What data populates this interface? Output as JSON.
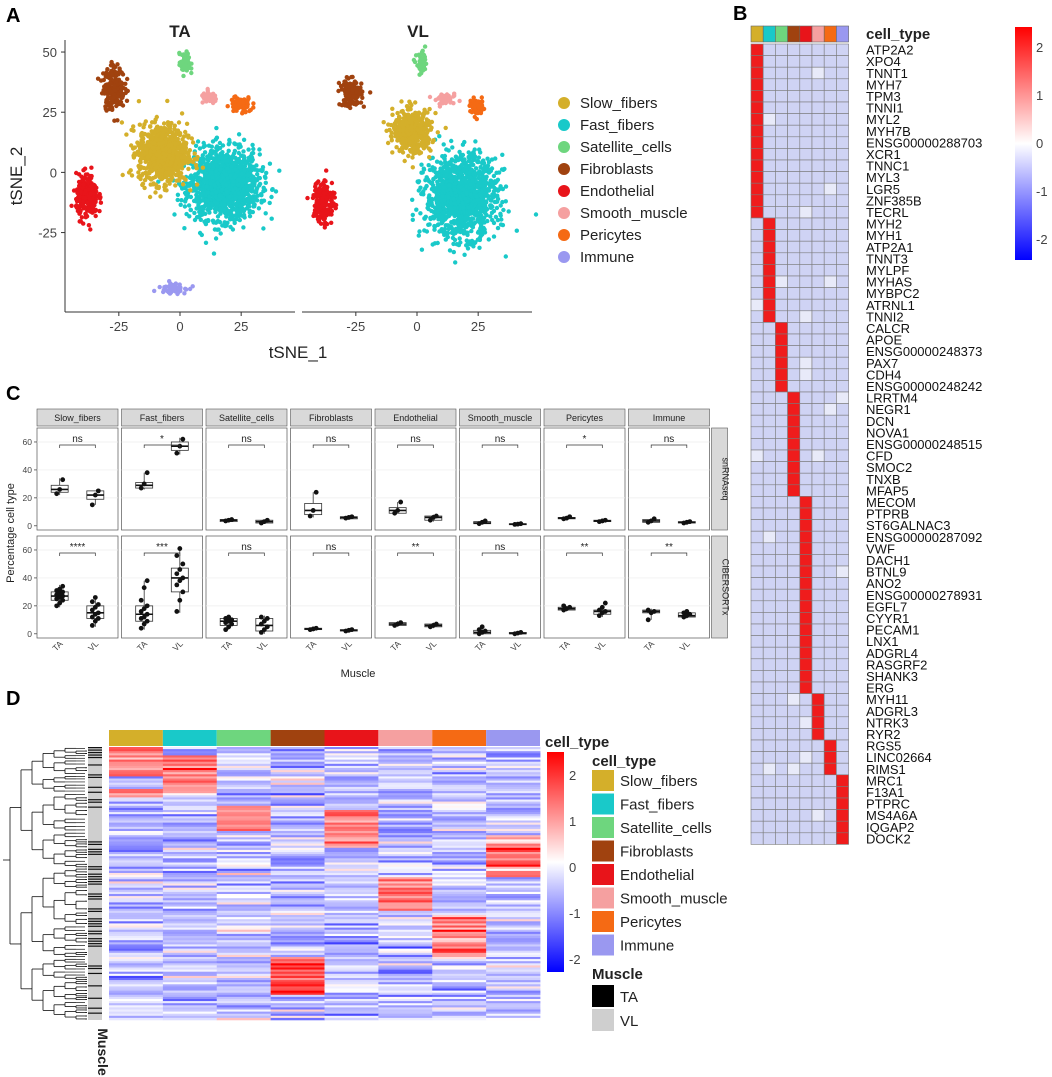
{
  "colors": {
    "Slow_fibers": "#D4AF2A",
    "Fast_fibers": "#19C9C9",
    "Satellite_cells": "#6ED67E",
    "Fibroblasts": "#A0420F",
    "Endothelial": "#E8141A",
    "Smooth_muscle": "#F5A0A0",
    "Pericytes": "#F56A14",
    "Immune": "#9A98F0"
  },
  "panel_labels": [
    "A",
    "B",
    "C",
    "D"
  ],
  "panelA": {
    "facets": [
      "TA",
      "VL"
    ],
    "xlabel": "tSNE_1",
    "ylabel": "tSNE_2",
    "xticks": [
      -25,
      0,
      25
    ],
    "yticks": [
      50,
      25,
      0,
      -25
    ],
    "xlim": [
      -47,
      47
    ],
    "ylim": [
      -58,
      55
    ],
    "legend": [
      "Slow_fibers",
      "Fast_fibers",
      "Satellite_cells",
      "Fibroblasts",
      "Endothelial",
      "Smooth_muscle",
      "Pericytes",
      "Immune"
    ]
  },
  "panelB": {
    "annotation_label": "cell_type",
    "colorbar_ticks": [
      "2",
      "1",
      "0",
      "-1",
      "-2"
    ],
    "genes": [
      "ATP2A2",
      "XPO4",
      "TNNT1",
      "MYH7",
      "TPM3",
      "TNNI1",
      "MYL2",
      "MYH7B",
      "ENSG00000288703",
      "XCR1",
      "TNNC1",
      "MYL3",
      "LGR5",
      "ZNF385B",
      "TECRL",
      "MYH2",
      "MYH1",
      "ATP2A1",
      "TNNT3",
      "MYLPF",
      "MYHAS",
      "MYBPC2",
      "ATRNL1",
      "TNNI2",
      "CALCR",
      "APOE",
      "ENSG00000248373",
      "PAX7",
      "CDH4",
      "ENSG00000248242",
      "LRRTM4",
      "NEGR1",
      "DCN",
      "NOVA1",
      "ENSG00000248515",
      "CFD",
      "SMOC2",
      "TNXB",
      "MFAP5",
      "MECOM",
      "PTPRB",
      "ST6GALNAC3",
      "ENSG00000287092",
      "VWF",
      "DACH1",
      "BTNL9",
      "ANO2",
      "ENSG00000278931",
      "EGFL7",
      "CYYR1",
      "PECAM1",
      "LNX1",
      "ADGRL4",
      "RASGRF2",
      "SHANK3",
      "ERG",
      "MYH11",
      "ADGRL3",
      "NTRK3",
      "RYR2",
      "RGS5",
      "LINC02664",
      "RIMS1",
      "MRC1",
      "F13A1",
      "PTPRC",
      "MS4A6A",
      "IQGAP2",
      "DOCK2"
    ],
    "gene_group_counts": [
      15,
      9,
      6,
      9,
      17,
      4,
      3,
      6
    ]
  },
  "panelC": {
    "facets": [
      "Slow_fibers",
      "Fast_fibers",
      "Satellite_cells",
      "Fibroblasts",
      "Endothelial",
      "Smooth_muscle",
      "Pericytes",
      "Immune"
    ],
    "rows": [
      "snRNAseq",
      "CIBERSORTx"
    ],
    "xticks": [
      "TA",
      "VL"
    ],
    "yticks": [
      0,
      20,
      40,
      60
    ],
    "ylim": [
      -3,
      70
    ],
    "xlabel": "Muscle",
    "ylabel": "Percentage cell type",
    "significance": [
      [
        "ns",
        "*",
        "ns",
        "ns",
        "ns",
        "ns",
        "*",
        "ns"
      ],
      [
        "****",
        "***",
        "ns",
        "ns",
        "**",
        "ns",
        "**",
        "**"
      ]
    ],
    "box_stats": [
      [
        {
          "TA": {
            "q1": 24,
            "med": 26,
            "q3": 29,
            "lo": 22,
            "hi": 34,
            "pts": [
              23,
              26,
              33
            ]
          },
          "VL": {
            "q1": 19,
            "med": 22,
            "q3": 25,
            "lo": 15,
            "hi": 25,
            "pts": [
              15,
              22,
              25
            ]
          }
        },
        {
          "TA": {
            "q1": 27,
            "med": 29,
            "q3": 31,
            "lo": 26,
            "hi": 38,
            "pts": [
              27,
              30,
              38
            ]
          },
          "VL": {
            "q1": 54,
            "med": 57,
            "q3": 60,
            "lo": 51,
            "hi": 63,
            "pts": [
              52,
              57,
              62
            ]
          }
        },
        {
          "TA": {
            "q1": 3,
            "med": 4,
            "q3": 4.5,
            "lo": 3,
            "hi": 5,
            "pts": [
              3.5,
              4,
              4.5
            ]
          },
          "VL": {
            "q1": 2,
            "med": 3,
            "q3": 4,
            "lo": 1.5,
            "hi": 4.5,
            "pts": [
              2,
              3,
              4
            ]
          }
        },
        {
          "TA": {
            "q1": 8,
            "med": 11,
            "q3": 16,
            "lo": 6,
            "hi": 24,
            "pts": [
              7,
              11,
              24
            ]
          },
          "VL": {
            "q1": 5,
            "med": 6,
            "q3": 6.5,
            "lo": 5,
            "hi": 7,
            "pts": [
              5.5,
              6,
              6.5
            ]
          }
        },
        {
          "TA": {
            "q1": 9,
            "med": 11,
            "q3": 13,
            "lo": 9,
            "hi": 17,
            "pts": [
              9,
              11,
              17
            ]
          },
          "VL": {
            "q1": 4,
            "med": 6,
            "q3": 7,
            "lo": 3,
            "hi": 8,
            "pts": [
              4,
              6,
              7
            ]
          }
        },
        {
          "TA": {
            "q1": 1.5,
            "med": 2,
            "q3": 3,
            "lo": 1,
            "hi": 4,
            "pts": [
              1.5,
              2.5,
              3.5
            ]
          },
          "VL": {
            "q1": 1,
            "med": 1.2,
            "q3": 1.5,
            "lo": 1,
            "hi": 2,
            "pts": [
              1,
              1.2,
              1.5
            ]
          }
        },
        {
          "TA": {
            "q1": 5,
            "med": 5.5,
            "q3": 6,
            "lo": 5,
            "hi": 6.5,
            "pts": [
              5,
              5.5,
              6.5
            ]
          },
          "VL": {
            "q1": 3,
            "med": 3.5,
            "q3": 4,
            "lo": 3,
            "hi": 4.5,
            "pts": [
              3,
              3.5,
              4
            ]
          }
        },
        {
          "TA": {
            "q1": 2.5,
            "med": 3.5,
            "q3": 4.5,
            "lo": 2,
            "hi": 5,
            "pts": [
              2.5,
              3.5,
              5
            ]
          },
          "VL": {
            "q1": 2,
            "med": 2.5,
            "q3": 3,
            "lo": 1.5,
            "hi": 3.5,
            "pts": [
              2,
              2.5,
              3
            ]
          }
        }
      ],
      [
        {
          "TA": {
            "q1": 24,
            "med": 27,
            "q3": 30,
            "lo": 19,
            "hi": 35,
            "pts": [
              20,
              22,
              24,
              25,
              26,
              27,
              28,
              29,
              30,
              31,
              32,
              34
            ]
          },
          "VL": {
            "q1": 11,
            "med": 15,
            "q3": 20,
            "lo": 5,
            "hi": 27,
            "pts": [
              6,
              9,
              11,
              12,
              14,
              15,
              17,
              19,
              21,
              23,
              26
            ]
          }
        },
        {
          "TA": {
            "q1": 9,
            "med": 14,
            "q3": 20,
            "lo": 3,
            "hi": 38,
            "pts": [
              4,
              7,
              9,
              11,
              12,
              14,
              16,
              18,
              20,
              24,
              33,
              38
            ]
          },
          "VL": {
            "q1": 30,
            "med": 40,
            "q3": 47,
            "lo": 15,
            "hi": 62,
            "pts": [
              16,
              24,
              30,
              35,
              38,
              40,
              43,
              46,
              50,
              56,
              61
            ]
          }
        },
        {
          "TA": {
            "q1": 6,
            "med": 9,
            "q3": 11,
            "lo": 3,
            "hi": 13,
            "pts": [
              3,
              5,
              7,
              8,
              9,
              10,
              11,
              12
            ]
          },
          "VL": {
            "q1": 2,
            "med": 6,
            "q3": 11,
            "lo": 0,
            "hi": 13,
            "pts": [
              1,
              3,
              5,
              7,
              9,
              11,
              12
            ]
          }
        },
        {
          "TA": {
            "q1": 3,
            "med": 3.5,
            "q3": 4,
            "lo": 2.5,
            "hi": 4.5,
            "pts": [
              3,
              3.5,
              4
            ]
          },
          "VL": {
            "q1": 2,
            "med": 2.5,
            "q3": 3,
            "lo": 1.5,
            "hi": 3.5,
            "pts": [
              2,
              2.5,
              3
            ]
          }
        },
        {
          "TA": {
            "q1": 6,
            "med": 7,
            "q3": 8,
            "lo": 5,
            "hi": 9,
            "pts": [
              6,
              7,
              8
            ]
          },
          "VL": {
            "q1": 5,
            "med": 6,
            "q3": 7,
            "lo": 4,
            "hi": 8,
            "pts": [
              5,
              6,
              7
            ]
          }
        },
        {
          "TA": {
            "q1": 0,
            "med": 1,
            "q3": 2.5,
            "lo": 0,
            "hi": 5,
            "pts": [
              0,
              1,
              2,
              3,
              5
            ]
          },
          "VL": {
            "q1": 0,
            "med": 0.3,
            "q3": 1,
            "lo": 0,
            "hi": 1.5,
            "pts": [
              0,
              0.5,
              1
            ]
          }
        },
        {
          "TA": {
            "q1": 17,
            "med": 18,
            "q3": 19,
            "lo": 16,
            "hi": 20,
            "pts": [
              17,
              18,
              19,
              20
            ]
          },
          "VL": {
            "q1": 14,
            "med": 16,
            "q3": 17,
            "lo": 12,
            "hi": 19,
            "pts": [
              13,
              15,
              16,
              17,
              19,
              22
            ]
          }
        },
        {
          "TA": {
            "q1": 15,
            "med": 16,
            "q3": 17,
            "lo": 10,
            "hi": 18,
            "pts": [
              10,
              15,
              16,
              17
            ]
          },
          "VL": {
            "q1": 12,
            "med": 13,
            "q3": 15,
            "lo": 11,
            "hi": 16,
            "pts": [
              12,
              13,
              14,
              15,
              16
            ]
          }
        }
      ]
    ]
  },
  "panelD": {
    "annotation_label": "cell_type",
    "legend_title": "cell_type",
    "colorbar_ticks": [
      "2",
      "1",
      "0",
      "-1",
      "-2"
    ],
    "legend": [
      "Slow_fibers",
      "Fast_fibers",
      "Satellite_cells",
      "Fibroblasts",
      "Endothelial",
      "Smooth_muscle",
      "Pericytes",
      "Immune"
    ],
    "muscle_title": "Muscle",
    "muscle_legend": [
      "TA",
      "VL"
    ],
    "muscle_axis_label": "Muscle"
  }
}
